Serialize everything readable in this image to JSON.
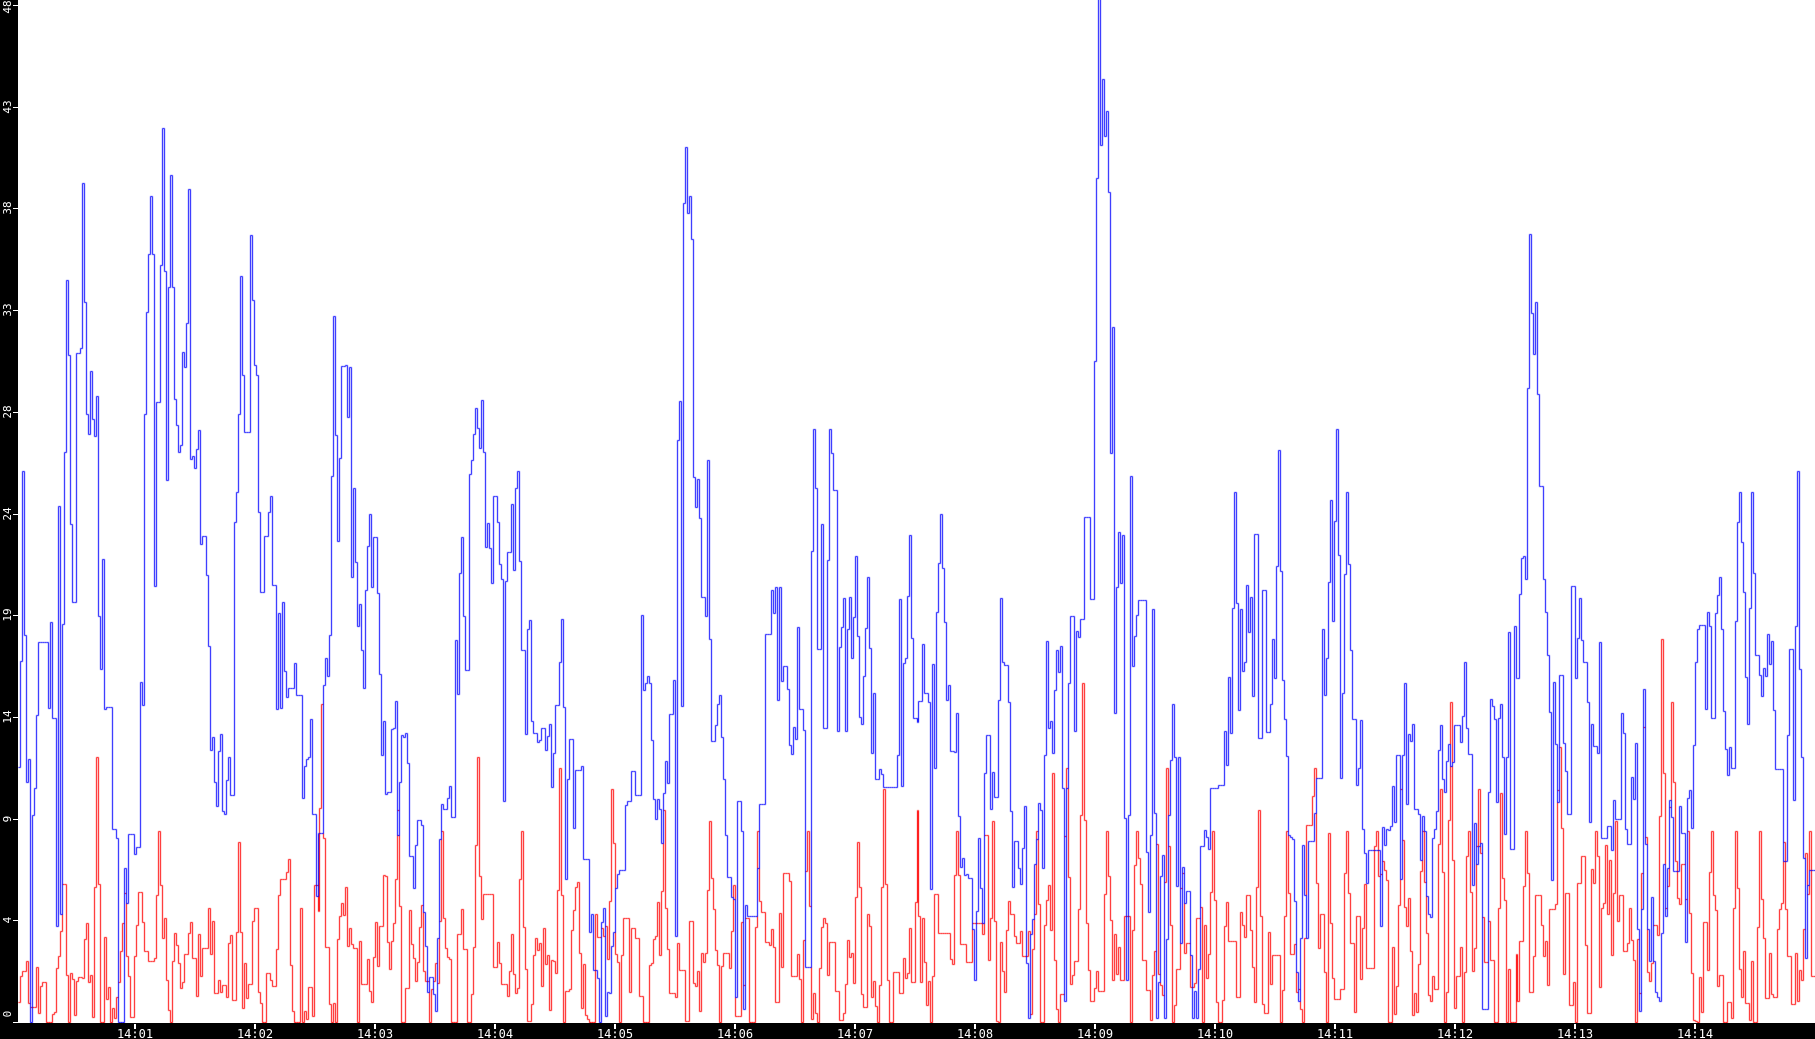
{
  "chart_data": {
    "type": "line",
    "title": "",
    "grid": false,
    "legend": false,
    "x_axis": {
      "window_start": "14:00",
      "window_end": "14:15",
      "tick_interval": "1 minute",
      "tick_labels": [
        "14:01",
        "14:02",
        "14:03",
        "14:04",
        "14:05",
        "14:06",
        "14:07",
        "14:08",
        "14:09",
        "14:10",
        "14:11",
        "14:12",
        "14:13",
        "14:14"
      ]
    },
    "y_axis": {
      "min": 0,
      "max": 48,
      "tick_labels": [
        0,
        4,
        9,
        14,
        19,
        24,
        28,
        33,
        38,
        43,
        48
      ]
    },
    "colors": {
      "background": "#ffffff",
      "axis_bar": "#000000",
      "tick": "#ffffff",
      "axis_label": "#ffffff",
      "series_blue": "#0000ff",
      "series_red": "#ff0000"
    },
    "sampling": {
      "duration_seconds": 900,
      "samples": 900,
      "style": "step"
    },
    "series": [
      {
        "name": "red-series",
        "color": "#ff0000",
        "keyframes": [
          [
            0,
            2.2,
            4
          ],
          [
            30,
            2.6,
            4.5
          ],
          [
            60,
            2.8,
            5
          ],
          [
            100,
            2.8,
            5
          ],
          [
            130,
            3.2,
            6
          ],
          [
            170,
            3.0,
            5.5
          ],
          [
            210,
            2.8,
            5
          ],
          [
            260,
            2.8,
            5
          ],
          [
            300,
            3.0,
            5.5
          ],
          [
            350,
            3.0,
            5
          ],
          [
            400,
            3.0,
            5.5
          ],
          [
            450,
            3.0,
            5.5
          ],
          [
            500,
            3.0,
            5.5
          ],
          [
            550,
            3.2,
            6
          ],
          [
            600,
            3.2,
            6
          ],
          [
            650,
            3.2,
            6
          ],
          [
            700,
            3.4,
            6.5
          ],
          [
            740,
            3.4,
            6.5
          ],
          [
            780,
            3.4,
            6.5
          ],
          [
            820,
            3.6,
            7
          ],
          [
            860,
            3.0,
            5.5
          ],
          [
            900,
            2.8,
            5
          ]
        ],
        "spikes": [
          [
            39,
            12.5
          ],
          [
            70,
            9
          ],
          [
            110,
            8.5
          ],
          [
            152,
            15
          ],
          [
            190,
            10
          ],
          [
            212,
            9
          ],
          [
            230,
            12.5
          ],
          [
            252,
            9
          ],
          [
            271,
            12
          ],
          [
            297,
            11
          ],
          [
            323,
            10
          ],
          [
            346,
            9.5
          ],
          [
            370,
            9
          ],
          [
            395,
            9
          ],
          [
            420,
            8.5
          ],
          [
            433,
            11
          ],
          [
            450,
            10
          ],
          [
            470,
            9
          ],
          [
            488,
            9.5
          ],
          [
            510,
            9
          ],
          [
            525,
            12
          ],
          [
            533,
            16
          ],
          [
            545,
            9
          ],
          [
            560,
            9
          ],
          [
            575,
            12
          ],
          [
            598,
            9
          ],
          [
            621,
            10
          ],
          [
            635,
            9
          ],
          [
            649,
            12
          ],
          [
            665,
            9
          ],
          [
            680,
            9
          ],
          [
            692,
            11
          ],
          [
            703,
            9
          ],
          [
            712,
            11
          ],
          [
            717,
            15.1
          ],
          [
            726,
            9
          ],
          [
            731,
            11
          ],
          [
            742,
            10.8
          ],
          [
            755,
            9
          ],
          [
            772,
            13
          ],
          [
            790,
            9
          ],
          [
            800,
            9.5
          ],
          [
            814,
            13.9
          ],
          [
            823,
            18.1
          ],
          [
            828,
            15.1
          ],
          [
            836,
            9
          ],
          [
            848,
            9
          ],
          [
            860,
            9
          ],
          [
            872,
            9
          ],
          [
            884,
            8.5
          ],
          [
            895,
            8
          ]
        ]
      },
      {
        "name": "blue-series",
        "color": "#0000ff",
        "keyframes": [
          [
            0,
            17,
            14
          ],
          [
            10,
            14,
            12
          ],
          [
            24,
            24,
            16
          ],
          [
            32,
            30,
            14
          ],
          [
            45,
            14,
            10
          ],
          [
            56,
            7,
            6
          ],
          [
            65,
            20,
            12
          ],
          [
            72,
            33,
            16
          ],
          [
            81,
            29,
            10
          ],
          [
            88,
            27,
            9
          ],
          [
            96,
            15,
            6
          ],
          [
            105,
            10,
            6
          ],
          [
            111,
            26,
            12
          ],
          [
            121,
            26,
            10
          ],
          [
            130,
            20,
            8
          ],
          [
            138,
            15,
            7
          ],
          [
            149,
            8,
            5
          ],
          [
            158,
            26,
            11
          ],
          [
            169,
            25,
            8
          ],
          [
            179,
            18,
            8
          ],
          [
            190,
            12,
            7
          ],
          [
            201,
            7,
            6
          ],
          [
            209,
            4,
            6
          ],
          [
            221,
            20,
            10
          ],
          [
            229,
            24,
            9
          ],
          [
            239,
            22,
            8
          ],
          [
            250,
            20,
            9
          ],
          [
            262,
            16,
            7
          ],
          [
            272,
            13,
            8
          ],
          [
            282,
            7,
            6
          ],
          [
            294,
            3,
            5
          ],
          [
            305,
            9,
            6
          ],
          [
            314,
            13,
            6
          ],
          [
            322,
            9,
            5
          ],
          [
            330,
            26,
            14
          ],
          [
            334,
            33,
            14
          ],
          [
            342,
            26,
            10
          ],
          [
            350,
            13,
            8
          ],
          [
            360,
            9,
            7
          ],
          [
            370,
            10,
            7
          ],
          [
            376,
            16,
            9
          ],
          [
            386,
            18,
            10
          ],
          [
            398,
            22,
            10
          ],
          [
            406,
            22,
            10
          ],
          [
            414,
            16,
            8
          ],
          [
            425,
            15,
            8
          ],
          [
            432,
            12,
            7
          ],
          [
            444,
            16,
            9
          ],
          [
            455,
            16,
            9
          ],
          [
            462,
            17,
            9
          ],
          [
            470,
            11,
            8
          ],
          [
            479,
            8,
            8
          ],
          [
            487,
            13,
            8
          ],
          [
            495,
            13,
            9
          ],
          [
            502,
            9,
            8
          ],
          [
            507,
            5,
            6
          ],
          [
            515,
            11,
            8
          ],
          [
            522,
            16,
            9
          ],
          [
            530,
            16,
            8
          ],
          [
            535,
            20,
            12
          ],
          [
            539,
            28,
            16
          ],
          [
            541,
            34,
            18
          ],
          [
            544,
            38,
            12
          ],
          [
            547,
            28,
            10
          ],
          [
            551,
            22,
            9
          ],
          [
            560,
            15,
            8
          ],
          [
            567,
            8,
            8
          ],
          [
            573,
            7,
            7
          ],
          [
            578,
            12,
            7
          ],
          [
            583,
            10,
            7
          ],
          [
            588,
            4,
            5
          ],
          [
            595,
            9,
            7
          ],
          [
            605,
            15,
            8
          ],
          [
            612,
            18,
            9
          ],
          [
            620,
            14,
            8
          ],
          [
            628,
            16,
            9
          ],
          [
            637,
            8,
            6
          ],
          [
            645,
            7,
            6
          ],
          [
            653,
            15,
            9
          ],
          [
            660,
            18,
            10
          ],
          [
            668,
            12,
            8
          ],
          [
            676,
            9,
            7
          ],
          [
            685,
            7,
            7
          ],
          [
            694,
            11,
            7
          ],
          [
            703,
            8,
            6
          ],
          [
            712,
            9,
            6
          ],
          [
            719,
            11,
            7
          ],
          [
            724,
            12,
            7
          ],
          [
            731,
            8,
            6
          ],
          [
            737,
            12,
            7
          ],
          [
            748,
            11,
            7
          ],
          [
            753,
            24,
            12
          ],
          [
            757,
            28,
            14
          ],
          [
            763,
            24,
            10
          ],
          [
            770,
            17,
            9
          ],
          [
            778,
            14,
            8
          ],
          [
            786,
            12,
            8
          ],
          [
            796,
            10,
            7
          ],
          [
            804,
            12,
            7
          ],
          [
            812,
            8,
            8
          ],
          [
            820,
            6,
            6
          ],
          [
            828,
            8,
            6
          ],
          [
            836,
            10,
            7
          ],
          [
            842,
            14,
            8
          ],
          [
            850,
            17,
            9
          ],
          [
            858,
            18,
            9
          ],
          [
            866,
            19,
            9
          ],
          [
            874,
            14,
            8
          ],
          [
            882,
            11,
            8
          ],
          [
            891,
            13,
            14
          ],
          [
            900,
            11,
            8
          ]
        ],
        "spikes": [
          [
            2,
            26
          ],
          [
            24,
            35
          ],
          [
            32,
            39.6
          ],
          [
            66,
            39
          ],
          [
            72,
            42.2
          ],
          [
            76,
            40
          ],
          [
            111,
            35.2
          ],
          [
            118,
            31
          ],
          [
            158,
            33.3
          ],
          [
            164,
            31
          ],
          [
            209,
            0.5
          ],
          [
            229,
            29
          ],
          [
            250,
            26
          ],
          [
            272,
            19
          ],
          [
            294,
            0.3
          ],
          [
            314,
            16
          ],
          [
            334,
            41.3
          ],
          [
            336,
            39
          ],
          [
            398,
            28
          ],
          [
            406,
            28
          ],
          [
            419,
            22
          ],
          [
            425,
            21
          ],
          [
            446,
            23
          ],
          [
            462,
            24
          ],
          [
            479,
            2
          ],
          [
            492,
            20
          ],
          [
            506,
            0.2
          ],
          [
            515,
            18
          ],
          [
            524,
            1
          ],
          [
            541,
            48.4
          ],
          [
            543,
            44.5
          ],
          [
            545,
            43
          ],
          [
            555,
            2
          ],
          [
            570,
            0.2
          ],
          [
            574,
            0.2
          ],
          [
            578,
            15
          ],
          [
            588,
            0.2
          ],
          [
            590,
            0.2
          ],
          [
            609,
            25
          ],
          [
            631,
            27
          ],
          [
            641,
            1
          ],
          [
            660,
            28
          ],
          [
            665,
            25
          ],
          [
            694,
            16
          ],
          [
            712,
            14
          ],
          [
            724,
            17
          ],
          [
            742,
            15
          ],
          [
            757,
            37.2
          ],
          [
            760,
            34
          ],
          [
            782,
            20
          ],
          [
            812,
            0.5
          ],
          [
            822,
            1
          ],
          [
            840,
            17
          ],
          [
            852,
            21
          ],
          [
            862,
            25
          ],
          [
            868,
            25
          ],
          [
            878,
            18
          ],
          [
            891,
            26
          ],
          [
            895,
            3
          ]
        ]
      }
    ]
  }
}
